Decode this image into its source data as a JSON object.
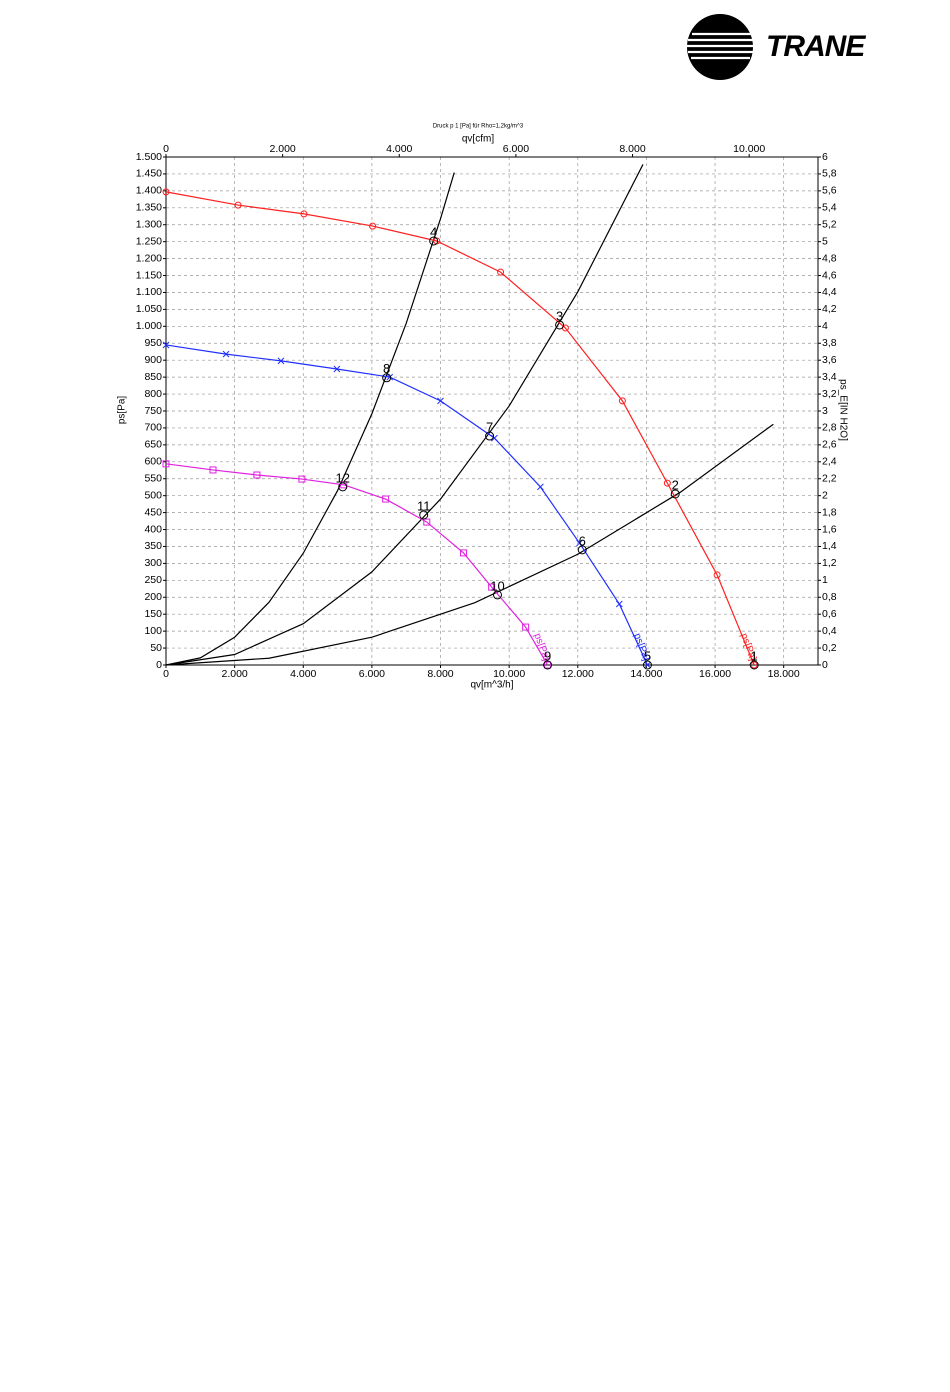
{
  "header": {
    "logo_text": "TRANE"
  },
  "chart_data": {
    "type": "line",
    "title": "Druck p 1 [Pa] für Rho=1,2kg/m^3",
    "xlabel": "qv[m^3/h]",
    "x2label": "qv[cfm]",
    "ylabel": "ps[Pa]",
    "y2label": "ps_E[IN H2O]",
    "xlim": [
      0,
      19000
    ],
    "x2lim": [
      0,
      11180
    ],
    "ylim": [
      0,
      1500
    ],
    "y2lim": [
      0,
      6
    ],
    "xticks": [
      0,
      {
        "value": 2000,
        "label": "2.000"
      },
      {
        "value": 4000,
        "label": "4.000"
      },
      {
        "value": 6000,
        "label": "6.000"
      },
      {
        "value": 8000,
        "label": "8.000"
      },
      {
        "value": 10000,
        "label": "10.000"
      },
      {
        "value": 12000,
        "label": "12.000"
      },
      {
        "value": 14000,
        "label": "14.000"
      },
      {
        "value": 16000,
        "label": "16.000"
      },
      {
        "value": 18000,
        "label": "18.000"
      }
    ],
    "x2ticks": [
      0,
      {
        "value": 2000,
        "label": "2.000"
      },
      {
        "value": 4000,
        "label": "4.000"
      },
      {
        "value": 6000,
        "label": "6.000"
      },
      {
        "value": 8000,
        "label": "8.000"
      },
      {
        "value": 10000,
        "label": "10.000"
      }
    ],
    "yticks": [
      0,
      50,
      100,
      150,
      200,
      250,
      300,
      350,
      400,
      450,
      500,
      550,
      600,
      650,
      700,
      750,
      800,
      850,
      900,
      950,
      {
        "value": 1000,
        "label": "1.000"
      },
      {
        "value": 1050,
        "label": "1.050"
      },
      {
        "value": 1100,
        "label": "1.100"
      },
      {
        "value": 1150,
        "label": "1.150"
      },
      {
        "value": 1200,
        "label": "1.200"
      },
      {
        "value": 1250,
        "label": "1.250"
      },
      {
        "value": 1300,
        "label": "1.300"
      },
      {
        "value": 1350,
        "label": "1.350"
      },
      {
        "value": 1400,
        "label": "1.400"
      },
      {
        "value": 1450,
        "label": "1.450"
      },
      {
        "value": 1500,
        "label": "1.500"
      }
    ],
    "y2ticks": [
      0,
      {
        "value": 0.2,
        "label": "0,2"
      },
      {
        "value": 0.4,
        "label": "0,4"
      },
      {
        "value": 0.6,
        "label": "0,6"
      },
      {
        "value": 0.8,
        "label": "0,8"
      },
      1,
      {
        "value": 1.2,
        "label": "1,2"
      },
      {
        "value": 1.4,
        "label": "1,4"
      },
      {
        "value": 1.6,
        "label": "1,6"
      },
      {
        "value": 1.8,
        "label": "1,8"
      },
      2,
      {
        "value": 2.2,
        "label": "2,2"
      },
      {
        "value": 2.4,
        "label": "2,4"
      },
      {
        "value": 2.6,
        "label": "2,6"
      },
      {
        "value": 2.8,
        "label": "2,8"
      },
      3,
      {
        "value": 3.2,
        "label": "3,2"
      },
      {
        "value": 3.4,
        "label": "3,4"
      },
      {
        "value": 3.6,
        "label": "3,6"
      },
      {
        "value": 3.8,
        "label": "3,8"
      },
      4,
      {
        "value": 4.2,
        "label": "4,2"
      },
      {
        "value": 4.4,
        "label": "4,4"
      },
      {
        "value": 4.6,
        "label": "4,6"
      },
      {
        "value": 4.8,
        "label": "4,8"
      },
      5,
      {
        "value": 5.2,
        "label": "5,2"
      },
      {
        "value": 5.4,
        "label": "5,4"
      },
      {
        "value": 5.6,
        "label": "5,6"
      },
      {
        "value": 5.8,
        "label": "5,8"
      },
      6
    ],
    "grid": true,
    "series": [
      {
        "name": "ps[Pa]",
        "color": "#ff2020",
        "marker": "circle",
        "x": [
          0,
          2100,
          4020,
          6020,
          7890,
          9750,
          11640,
          13300,
          14610,
          16060,
          17140
        ],
        "values": [
          1397,
          1358,
          1332,
          1296,
          1252,
          1160,
          995,
          780,
          537,
          266,
          0
        ]
      },
      {
        "name": "ps[Pa]",
        "color": "#2030ff",
        "marker": "x",
        "x": [
          0,
          1750,
          3350,
          4980,
          6520,
          8000,
          9570,
          10910,
          12050,
          13210,
          14030
        ],
        "values": [
          945,
          918,
          898,
          874,
          850,
          780,
          670,
          526,
          360,
          180,
          0
        ]
      },
      {
        "name": "ps[Pa]",
        "color": "#e020e0",
        "marker": "square",
        "x": [
          0,
          1370,
          2650,
          3960,
          5180,
          6400,
          7600,
          8670,
          9490,
          10480,
          11120
        ],
        "values": [
          594,
          576,
          561,
          549,
          532,
          490,
          422,
          331,
          230,
          112,
          0
        ]
      }
    ],
    "system_curves": [
      {
        "color": "#000000",
        "x": [
          0,
          1000,
          2000,
          3000,
          4000,
          5000,
          6000,
          7000,
          8000,
          8400
        ],
        "values": [
          0,
          21,
          82,
          185,
          330,
          515,
          742,
          1009,
          1318,
          1454
        ]
      },
      {
        "color": "#000000",
        "x": [
          0,
          2000,
          4000,
          6000,
          8000,
          10000,
          12000,
          13900
        ],
        "values": [
          0,
          31,
          122,
          275,
          490,
          765,
          1102,
          1478
        ]
      },
      {
        "color": "#000000",
        "x": [
          0,
          3000,
          6000,
          9000,
          12000,
          15000,
          17700
        ],
        "values": [
          0,
          20,
          82,
          184,
          327,
          511,
          711
        ]
      }
    ],
    "points": [
      {
        "label": "1",
        "x": 17140,
        "y": 0
      },
      {
        "label": "2",
        "x": 14840,
        "y": 505
      },
      {
        "label": "3",
        "x": 11470,
        "y": 1004
      },
      {
        "label": "4",
        "x": 7800,
        "y": 1252
      },
      {
        "label": "5",
        "x": 14030,
        "y": 0
      },
      {
        "label": "6",
        "x": 12130,
        "y": 340
      },
      {
        "label": "7",
        "x": 9430,
        "y": 676
      },
      {
        "label": "8",
        "x": 6430,
        "y": 848
      },
      {
        "label": "9",
        "x": 11120,
        "y": 0
      },
      {
        "label": "10",
        "x": 9660,
        "y": 207
      },
      {
        "label": "11",
        "x": 7510,
        "y": 443
      },
      {
        "label": "12",
        "x": 5150,
        "y": 526
      }
    ]
  }
}
